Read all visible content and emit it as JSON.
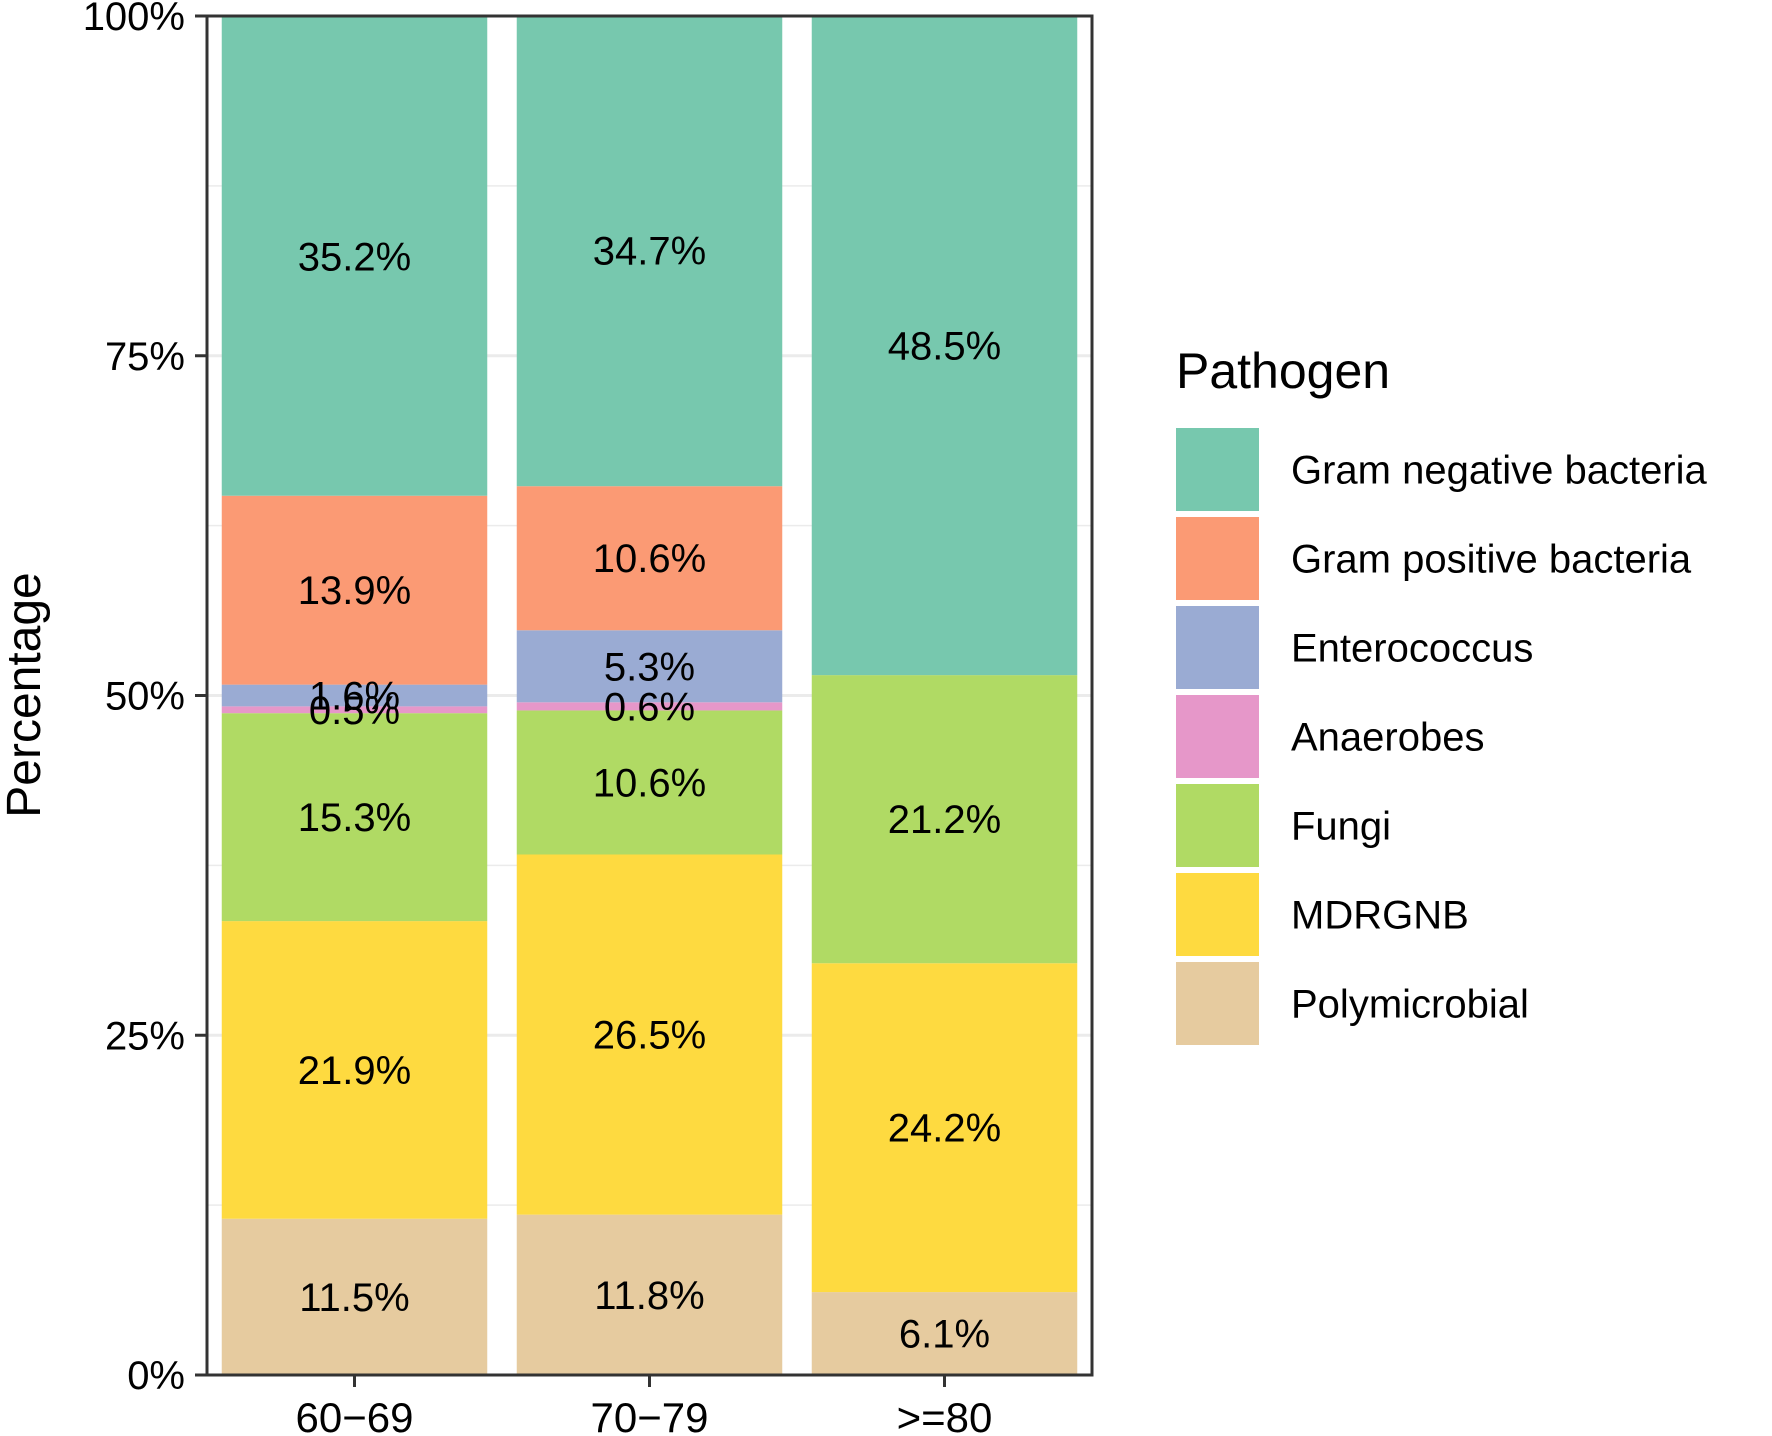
{
  "chart_data": {
    "type": "bar",
    "stacked": true,
    "percent": true,
    "title": "",
    "xlabel": "",
    "ylabel": "Percentage",
    "ylim": [
      0,
      100
    ],
    "y_ticks": [
      {
        "value": 0,
        "label": "0%"
      },
      {
        "value": 25,
        "label": "25%"
      },
      {
        "value": 50,
        "label": "50%"
      },
      {
        "value": 75,
        "label": "75%"
      },
      {
        "value": 100,
        "label": "100%"
      }
    ],
    "grid": true,
    "legend": {
      "title": "Pathogen",
      "position": "right"
    },
    "categories": [
      "60−69",
      "70−79",
      ">=80"
    ],
    "series": [
      {
        "name": "Polymicrobial",
        "color": "#E6CB9F",
        "values": [
          11.5,
          11.8,
          6.1
        ],
        "labels": [
          "11.5%",
          "11.8%",
          "6.1%"
        ]
      },
      {
        "name": "MDRGNB",
        "color": "#FEDA40",
        "values": [
          21.9,
          26.5,
          24.2
        ],
        "labels": [
          "21.9%",
          "26.5%",
          "24.2%"
        ]
      },
      {
        "name": "Fungi",
        "color": "#B0DA64",
        "values": [
          15.3,
          10.6,
          21.2
        ],
        "labels": [
          "15.3%",
          "10.6%",
          "21.2%"
        ]
      },
      {
        "name": "Anaerobes",
        "color": "#E697C9",
        "values": [
          0.5,
          0.6,
          0
        ],
        "labels": [
          "0.5%",
          "0.6%",
          ""
        ]
      },
      {
        "name": "Enterococcus",
        "color": "#9AABD3",
        "values": [
          1.6,
          5.3,
          0
        ],
        "labels": [
          "1.6%",
          "5.3%",
          ""
        ]
      },
      {
        "name": "Gram positive bacteria",
        "color": "#FB9A74",
        "values": [
          13.9,
          10.6,
          0
        ],
        "labels": [
          "13.9%",
          "10.6%",
          ""
        ]
      },
      {
        "name": "Gram negative bacteria",
        "color": "#77C8AE",
        "values": [
          35.2,
          34.7,
          48.5
        ],
        "labels": [
          "35.2%",
          "34.7%",
          "48.5%"
        ]
      }
    ],
    "legend_order": [
      "Gram negative bacteria",
      "Gram positive bacteria",
      "Enterococcus",
      "Anaerobes",
      "Fungi",
      "MDRGNB",
      "Polymicrobial"
    ]
  }
}
